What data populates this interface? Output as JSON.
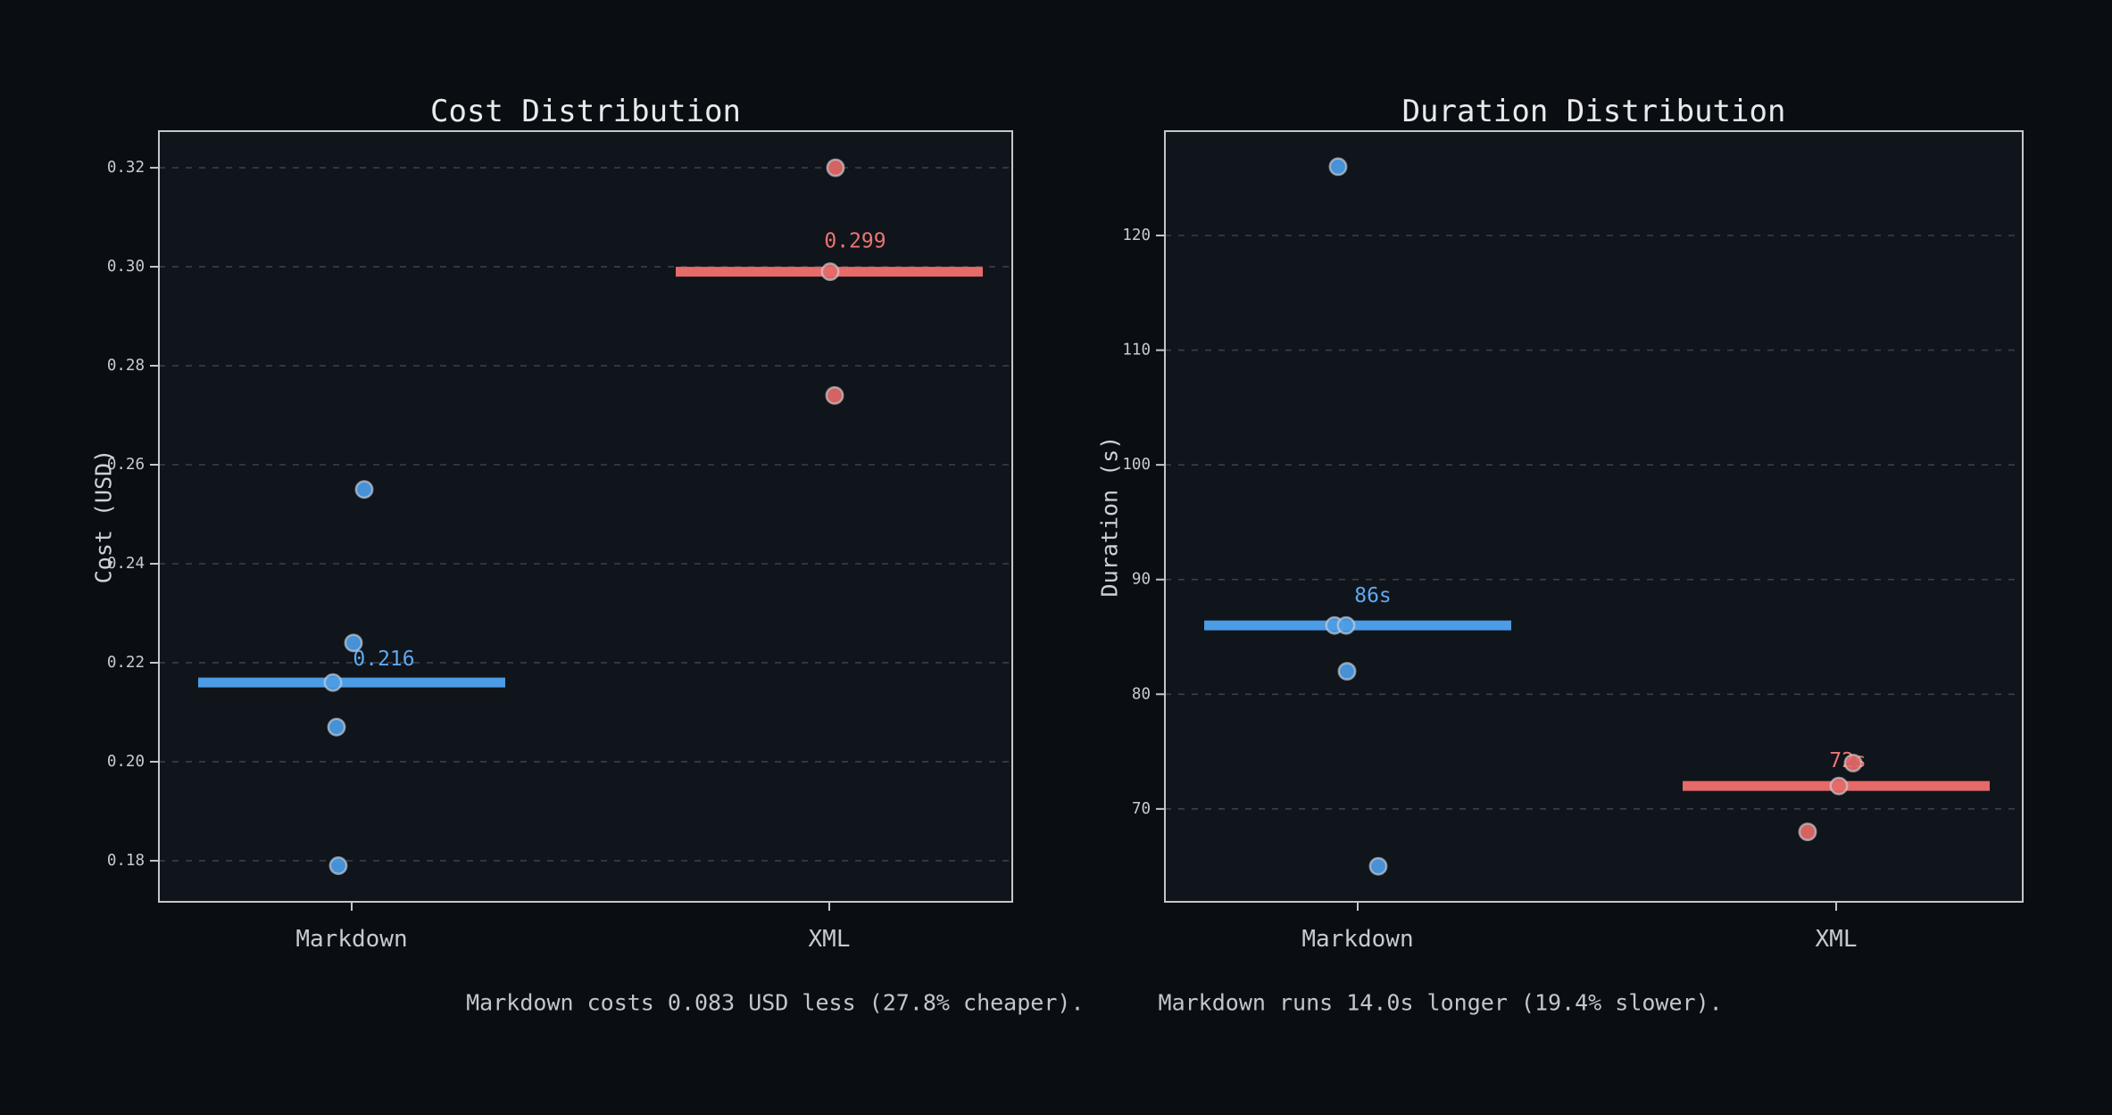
{
  "page": {
    "bg": "#0a0e12"
  },
  "chart_data": [
    {
      "type": "scatter",
      "title": "Cost Distribution",
      "ylabel": "Cost (USD)",
      "xlabel": "",
      "categories": [
        "Markdown",
        "XML"
      ],
      "ylim": [
        0.1717,
        0.3274
      ],
      "grid": true,
      "legend": "none",
      "yticks": [
        {
          "v": 0.18,
          "label": "0.18"
        },
        {
          "v": 0.2,
          "label": "0.20"
        },
        {
          "v": 0.22,
          "label": "0.22"
        },
        {
          "v": 0.24,
          "label": "0.24"
        },
        {
          "v": 0.26,
          "label": "0.26"
        },
        {
          "v": 0.28,
          "label": "0.28"
        },
        {
          "v": 0.3,
          "label": "0.30"
        },
        {
          "v": 0.32,
          "label": "0.32"
        }
      ],
      "series": [
        {
          "name": "Markdown",
          "color": "#4c9ce6",
          "label_color": "#5ea9f0",
          "median": 0.216,
          "median_label": "0.216",
          "ann_dx": 36,
          "ann_dy": -26,
          "points": [
            {
              "v": 0.255,
              "dx": 14
            },
            {
              "v": 0.224,
              "dx": 2
            },
            {
              "v": 0.216,
              "dx": -21
            },
            {
              "v": 0.207,
              "dx": -17
            },
            {
              "v": 0.179,
              "dx": -15
            }
          ]
        },
        {
          "name": "XML",
          "color": "#e56a68",
          "label_color": "#ee7472",
          "median": 0.299,
          "median_label": "0.299",
          "ann_dx": 29,
          "ann_dy": -34,
          "points": [
            {
              "v": 0.32,
              "dx": 7
            },
            {
              "v": 0.299,
              "dx": 1
            },
            {
              "v": 0.274,
              "dx": 6
            }
          ]
        }
      ]
    },
    {
      "type": "scatter",
      "title": "Duration Distribution",
      "ylabel": "Duration (s)",
      "xlabel": "",
      "categories": [
        "Markdown",
        "XML"
      ],
      "ylim": [
        61.9,
        129.1
      ],
      "grid": true,
      "legend": "none",
      "yticks": [
        {
          "v": 70,
          "label": "70"
        },
        {
          "v": 80,
          "label": "80"
        },
        {
          "v": 90,
          "label": "90"
        },
        {
          "v": 100,
          "label": "100"
        },
        {
          "v": 110,
          "label": "110"
        },
        {
          "v": 120,
          "label": "120"
        }
      ],
      "series": [
        {
          "name": "Markdown",
          "color": "#4c9ce6",
          "label_color": "#5ea9f0",
          "median": 86,
          "median_label": "86s",
          "ann_dx": 17,
          "ann_dy": -33,
          "points": [
            {
              "v": 126,
              "dx": -22
            },
            {
              "v": 86,
              "dx": -26
            },
            {
              "v": 86,
              "dx": -13
            },
            {
              "v": 82,
              "dx": -12
            },
            {
              "v": 65,
              "dx": 23
            }
          ]
        },
        {
          "name": "XML",
          "color": "#e56a68",
          "label_color": "#ee7472",
          "median": 72,
          "median_label": "72s",
          "ann_dx": 13,
          "ann_dy": -28,
          "points": [
            {
              "v": 74,
              "dx": 19
            },
            {
              "v": 72,
              "dx": 3
            },
            {
              "v": 68,
              "dx": -32
            }
          ]
        }
      ]
    }
  ],
  "captions": {
    "cost": "Markdown costs 0.083 USD less (27.8% cheaper).",
    "duration": "Markdown runs 14.0s longer (19.4% slower)."
  },
  "style": {
    "plot_bg": "#10141b",
    "spine": "#c2c7cd",
    "grid": "#3a4048",
    "tick_text": "#c6cbd1",
    "title_text": "#e8eaed",
    "axis_label_text": "#cdd2d7",
    "marker_edge": "#ccd2d8"
  }
}
